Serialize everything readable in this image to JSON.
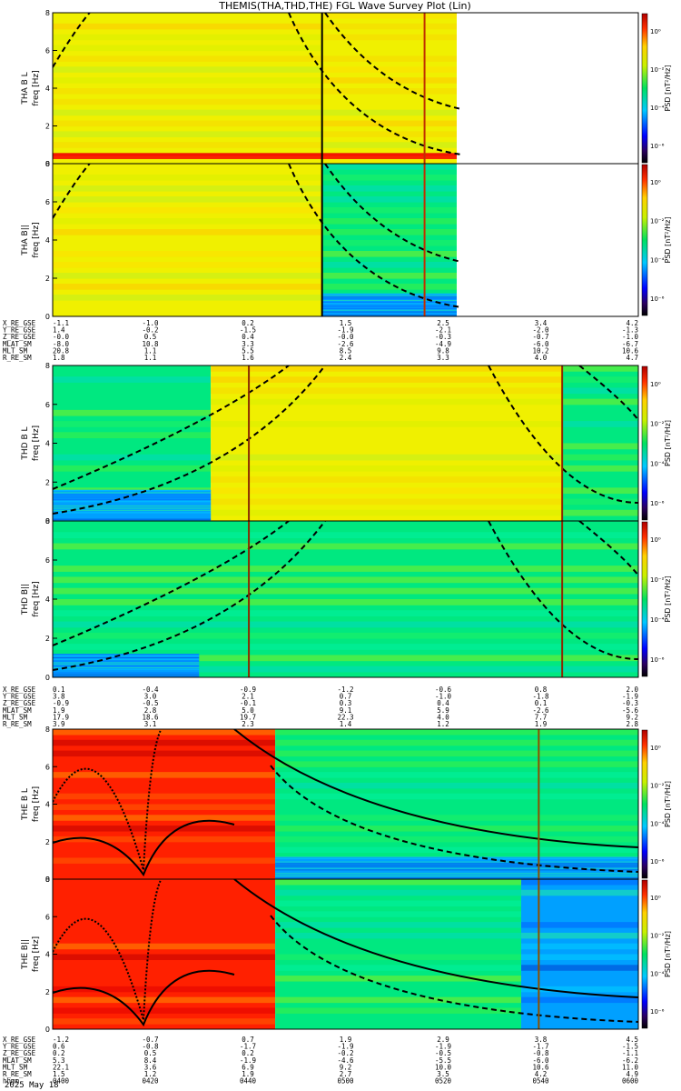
{
  "title": "THEMIS(THA,THD,THE) FGL Wave Survey Plot (Lin)",
  "colorbar_label": "PSD [nT²/Hz]",
  "colorbar_ticks": [
    "10⁰",
    "10⁻²",
    "10⁻⁴",
    "10⁻⁶"
  ],
  "chart_data": {
    "type": "heatmap",
    "xlabel": "hhmm",
    "date": "2025 May 18",
    "time_ticks": [
      "0400",
      "0420",
      "0440",
      "0500",
      "0520",
      "0540",
      "0600"
    ],
    "ylim": [
      0,
      8
    ],
    "y_ticks": [
      0,
      2,
      4,
      6,
      8
    ],
    "colorbar_scale": "log",
    "colorbar_range": [
      1e-06,
      10.0
    ],
    "panels": [
      {
        "label": "THA B L",
        "ylabel": "freq [Hz]",
        "probe": "THA",
        "component": "B L"
      },
      {
        "label": "THA B||",
        "ylabel": "freq [Hz]",
        "probe": "THA",
        "component": "B||"
      },
      {
        "label": "THD B L",
        "ylabel": "freq [Hz]",
        "probe": "THD",
        "component": "B L"
      },
      {
        "label": "THD B||",
        "ylabel": "freq [Hz]",
        "probe": "THD",
        "component": "B||"
      },
      {
        "label": "THE B L",
        "ylabel": "freq [Hz]",
        "probe": "THE",
        "component": "B L"
      },
      {
        "label": "THE B||",
        "ylabel": "freq [Hz]",
        "probe": "THE",
        "component": "B||"
      }
    ],
    "ephemeris": [
      {
        "probe": "THA",
        "rows": [
          {
            "name": "X_RE_GSE",
            "values": [
              "-1.1",
              "-1.0",
              "0.2",
              "1.5",
              "2.5",
              "3.4",
              "4.2"
            ]
          },
          {
            "name": "Y_RE_GSE",
            "values": [
              "1.4",
              "-0.2",
              "-1.5",
              "-1.9",
              "-2.1",
              "-2.0",
              "-1.3"
            ]
          },
          {
            "name": "Z_RE_GSE",
            "values": [
              "-0.0",
              "0.5",
              "0.4",
              "-0.0",
              "-0.3",
              "-0.7",
              "-1.0"
            ]
          },
          {
            "name": "MLAT_SM",
            "values": [
              "-8.0",
              "10.8",
              "3.3",
              "-2.6",
              "-4.9",
              "-6.0",
              "-6.7"
            ]
          },
          {
            "name": "MLT_SM",
            "values": [
              "20.8",
              "1.1",
              "5.5",
              "8.5",
              "9.8",
              "10.2",
              "10.6"
            ]
          },
          {
            "name": "R_RE_SM",
            "values": [
              "1.8",
              "1.1",
              "1.6",
              "2.4",
              "3.3",
              "4.0",
              "4.7"
            ]
          }
        ]
      },
      {
        "probe": "THD",
        "rows": [
          {
            "name": "X_RE_GSE",
            "values": [
              "0.1",
              "-0.4",
              "-0.9",
              "-1.2",
              "-0.6",
              "0.8",
              "2.0"
            ]
          },
          {
            "name": "Y_RE_GSE",
            "values": [
              "3.8",
              "3.0",
              "2.1",
              "0.7",
              "-1.0",
              "-1.8",
              "-1.9"
            ]
          },
          {
            "name": "Z_RE_GSE",
            "values": [
              "-0.9",
              "-0.5",
              "-0.1",
              "0.3",
              "0.4",
              "0.1",
              "-0.3"
            ]
          },
          {
            "name": "MLAT_SM",
            "values": [
              "1.9",
              "2.8",
              "5.0",
              "9.1",
              "5.9",
              "-2.6",
              "-5.6"
            ]
          },
          {
            "name": "MLT_SM",
            "values": [
              "17.9",
              "18.6",
              "19.7",
              "22.3",
              "4.0",
              "7.7",
              "9.2"
            ]
          },
          {
            "name": "R_RE_SM",
            "values": [
              "3.9",
              "3.1",
              "2.3",
              "1.4",
              "1.2",
              "1.9",
              "2.8"
            ]
          }
        ]
      },
      {
        "probe": "THE",
        "rows": [
          {
            "name": "X_RE_GSE",
            "values": [
              "-1.2",
              "-0.7",
              "0.7",
              "1.9",
              "2.9",
              "3.8",
              "4.5"
            ]
          },
          {
            "name": "Y_RE_GSE",
            "values": [
              "0.6",
              "-0.8",
              "-1.7",
              "-1.9",
              "-1.9",
              "-1.7",
              "-1.5"
            ]
          },
          {
            "name": "Z_RE_GSE",
            "values": [
              "0.2",
              "0.5",
              "0.2",
              "-0.2",
              "-0.5",
              "-0.8",
              "-1.1"
            ]
          },
          {
            "name": "MLAT_SM",
            "values": [
              "5.3",
              "8.4",
              "-1.9",
              "-4.6",
              "-5.5",
              "-6.0",
              "-6.2"
            ]
          },
          {
            "name": "MLT_SM",
            "values": [
              "22.1",
              "3.6",
              "6.9",
              "9.2",
              "10.0",
              "10.6",
              "11.0"
            ]
          },
          {
            "name": "R_RE_SM",
            "values": [
              "1.5",
              "1.2",
              "1.9",
              "2.7",
              "3.5",
              "4.2",
              "4.9"
            ]
          }
        ]
      }
    ]
  }
}
